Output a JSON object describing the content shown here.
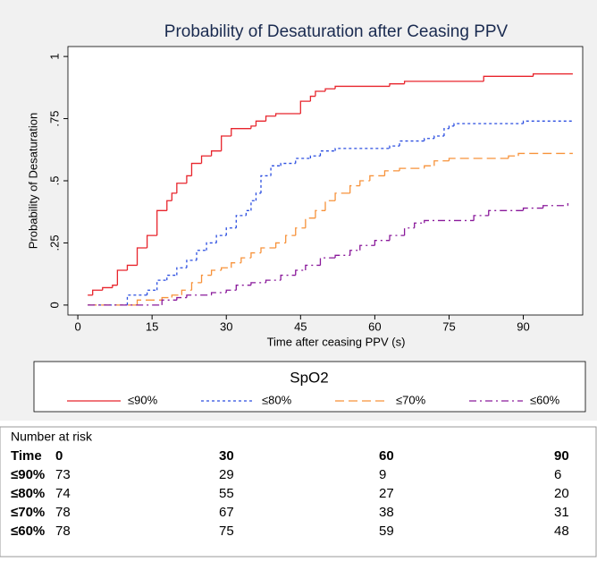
{
  "chart_data": {
    "type": "step",
    "title": "Probability of Desaturation after Ceasing PPV",
    "x_label": "Time after ceasing PPV (s)",
    "y_label": "Probability of Desaturation",
    "xlim": [
      -2,
      102
    ],
    "xticks": [
      0,
      15,
      30,
      45,
      60,
      75,
      90
    ],
    "ylim": [
      -0.04,
      1.04
    ],
    "yticks": [
      0,
      {
        "value": 0.25,
        "label": ".25"
      },
      {
        "value": 0.5,
        "label": ".5"
      },
      {
        "value": 0.75,
        "label": ".75"
      },
      1
    ],
    "legend_title": "SpO2",
    "series": [
      {
        "name": "≤90%",
        "color": "#e8242c",
        "dash": "solid",
        "x": [
          2,
          3,
          5,
          7,
          8,
          10,
          12,
          14,
          16,
          18,
          19,
          20,
          22,
          23,
          25,
          27,
          29,
          31,
          35,
          36,
          38,
          40,
          45,
          47,
          48,
          50,
          52,
          63,
          66,
          82,
          92,
          100
        ],
        "values": [
          0.04,
          0.06,
          0.07,
          0.08,
          0.14,
          0.16,
          0.23,
          0.28,
          0.38,
          0.42,
          0.45,
          0.49,
          0.52,
          0.57,
          0.6,
          0.62,
          0.68,
          0.71,
          0.72,
          0.74,
          0.76,
          0.77,
          0.82,
          0.84,
          0.86,
          0.87,
          0.88,
          0.89,
          0.9,
          0.92,
          0.93,
          0.93
        ]
      },
      {
        "name": "≤80%",
        "color": "#2a4de0",
        "dash": "dot",
        "x": [
          2,
          10,
          14,
          16,
          18,
          20,
          22,
          24,
          26,
          28,
          30,
          32,
          34,
          35,
          36,
          37,
          39,
          41,
          44,
          47,
          49,
          52,
          63,
          65,
          70,
          72,
          74,
          75,
          76,
          90,
          100
        ],
        "values": [
          0,
          0.04,
          0.06,
          0.1,
          0.12,
          0.15,
          0.18,
          0.22,
          0.25,
          0.28,
          0.31,
          0.36,
          0.38,
          0.42,
          0.45,
          0.52,
          0.56,
          0.57,
          0.59,
          0.6,
          0.62,
          0.63,
          0.64,
          0.66,
          0.67,
          0.68,
          0.71,
          0.72,
          0.73,
          0.74,
          0.74
        ]
      },
      {
        "name": "≤70%",
        "color": "#f7923a",
        "dash": "dash",
        "x": [
          2,
          12,
          17,
          19,
          21,
          23,
          25,
          27,
          29,
          31,
          33,
          35,
          37,
          40,
          42,
          44,
          46,
          48,
          50,
          52,
          55,
          57,
          59,
          62,
          65,
          70,
          72,
          75,
          87,
          89,
          100
        ],
        "values": [
          0,
          0.02,
          0.03,
          0.04,
          0.06,
          0.09,
          0.12,
          0.14,
          0.15,
          0.17,
          0.19,
          0.21,
          0.23,
          0.25,
          0.28,
          0.31,
          0.35,
          0.38,
          0.42,
          0.45,
          0.48,
          0.5,
          0.52,
          0.54,
          0.55,
          0.56,
          0.58,
          0.59,
          0.6,
          0.61,
          0.61
        ]
      },
      {
        "name": "≤60%",
        "color": "#8a1a9b",
        "dash": "dashdot",
        "x": [
          2,
          17,
          20,
          22,
          27,
          30,
          32,
          35,
          38,
          41,
          44,
          46,
          49,
          52,
          55,
          57,
          60,
          63,
          66,
          68,
          70,
          80,
          83,
          90,
          94,
          99
        ],
        "values": [
          0,
          0.02,
          0.03,
          0.04,
          0.05,
          0.06,
          0.08,
          0.09,
          0.1,
          0.12,
          0.14,
          0.16,
          0.19,
          0.2,
          0.22,
          0.24,
          0.26,
          0.28,
          0.31,
          0.33,
          0.34,
          0.36,
          0.38,
          0.39,
          0.4,
          0.41
        ]
      }
    ]
  },
  "risk_table": {
    "title": "Number at risk",
    "header": [
      "Time",
      "0",
      "30",
      "60",
      "90"
    ],
    "rows": [
      [
        "≤90%",
        "73",
        "29",
        "9",
        "6"
      ],
      [
        "≤80%",
        "74",
        "55",
        "27",
        "20"
      ],
      [
        "≤70%",
        "78",
        "67",
        "38",
        "31"
      ],
      [
        "≤60%",
        "78",
        "75",
        "59",
        "48"
      ]
    ]
  }
}
